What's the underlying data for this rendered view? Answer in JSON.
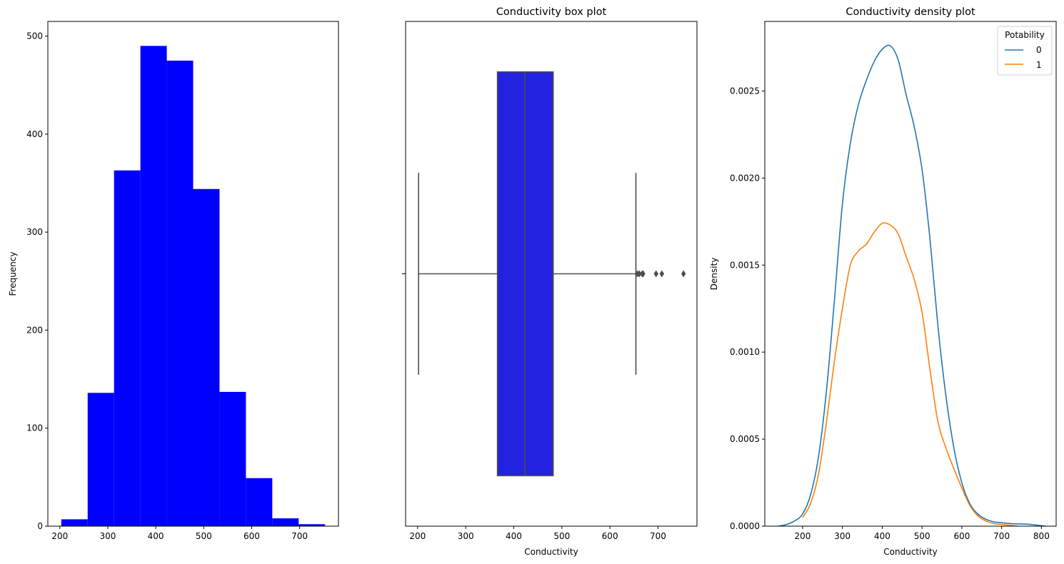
{
  "chart_data": [
    {
      "type": "bar",
      "subtype": "histogram",
      "title": "",
      "xlabel": "",
      "ylabel": "Frequency",
      "color": "#0000ff",
      "bins": [
        {
          "x0": 203,
          "x1": 258,
          "count": 7
        },
        {
          "x0": 258,
          "x1": 313,
          "count": 136
        },
        {
          "x0": 313,
          "x1": 368,
          "count": 363
        },
        {
          "x0": 368,
          "x1": 423,
          "count": 490
        },
        {
          "x0": 423,
          "x1": 478,
          "count": 475
        },
        {
          "x0": 478,
          "x1": 533,
          "count": 344
        },
        {
          "x0": 533,
          "x1": 588,
          "count": 137
        },
        {
          "x0": 588,
          "x1": 643,
          "count": 49
        },
        {
          "x0": 643,
          "x1": 698,
          "count": 8
        },
        {
          "x0": 698,
          "x1": 753,
          "count": 2
        }
      ],
      "xlim": [
        175,
        781
      ],
      "ylim": [
        0,
        515
      ],
      "xticks": [
        200,
        300,
        400,
        500,
        600,
        700
      ],
      "yticks": [
        0,
        100,
        200,
        300,
        400,
        500
      ],
      "grid": false
    },
    {
      "type": "box",
      "title": "Conductivity box plot",
      "xlabel": "Conductivity",
      "ylabel": "",
      "color": "#2222e0",
      "line_color": "#4d4d4d",
      "whisker_low": 202,
      "q1": 366,
      "median": 423,
      "q3": 482,
      "whisker_high": 654,
      "outliers": [
        657,
        661,
        667,
        669,
        696,
        708,
        753
      ],
      "xlim": [
        175,
        781
      ],
      "xticks": [
        200,
        300,
        400,
        500,
        600,
        700
      ],
      "grid": false
    },
    {
      "type": "line",
      "subtype": "density",
      "title": "Conductivity density plot",
      "xlabel": "Conductivity",
      "ylabel": "Density",
      "xlim": [
        105,
        837
      ],
      "ylim": [
        0,
        0.0029
      ],
      "xticks": [
        200,
        300,
        400,
        500,
        600,
        700,
        800
      ],
      "yticks": [
        "0.0000",
        "0.0005",
        "0.0010",
        "0.0015",
        "0.0020",
        "0.0025"
      ],
      "ytick_values": [
        0,
        0.0005,
        0.001,
        0.0015,
        0.002,
        0.0025
      ],
      "grid": false,
      "legend": {
        "title": "Potability",
        "placement": "top-right"
      },
      "series": [
        {
          "name": "0",
          "color": "#1f77b4",
          "x": [
            140,
            160,
            180,
            200,
            220,
            240,
            260,
            280,
            300,
            320,
            340,
            360,
            380,
            400,
            420,
            440,
            460,
            480,
            500,
            520,
            540,
            560,
            580,
            600,
            620,
            640,
            660,
            680,
            700,
            720,
            740,
            760,
            780,
            800,
            810
          ],
          "y": [
            0.0,
            1e-05,
            3e-05,
            7e-05,
            0.00018,
            0.0004,
            0.00078,
            0.0013,
            0.00185,
            0.0022,
            0.00242,
            0.00256,
            0.00267,
            0.00274,
            0.00276,
            0.00268,
            0.00248,
            0.0023,
            0.00205,
            0.00165,
            0.00115,
            0.00075,
            0.00045,
            0.00025,
            0.00013,
            7e-05,
            4e-05,
            2.5e-05,
            2e-05,
            1.5e-05,
            1.3e-05,
            1.2e-05,
            8e-06,
            3e-06,
            0.0
          ]
        },
        {
          "name": "1",
          "color": "#ff7f0e",
          "x": [
            200,
            220,
            240,
            260,
            280,
            300,
            320,
            340,
            360,
            380,
            400,
            420,
            440,
            460,
            480,
            500,
            520,
            540,
            560,
            580,
            600,
            620,
            640,
            660,
            680,
            700,
            720,
            740
          ],
          "y": [
            5e-05,
            0.00013,
            0.0003,
            0.0006,
            0.00095,
            0.00125,
            0.0015,
            0.00158,
            0.00162,
            0.00169,
            0.00174,
            0.00173,
            0.00168,
            0.00155,
            0.00142,
            0.00123,
            0.0009,
            0.0006,
            0.00045,
            0.00033,
            0.00022,
            0.00012,
            6e-05,
            3e-05,
            1.5e-05,
            1e-05,
            5e-06,
            0.0
          ]
        }
      ]
    }
  ]
}
